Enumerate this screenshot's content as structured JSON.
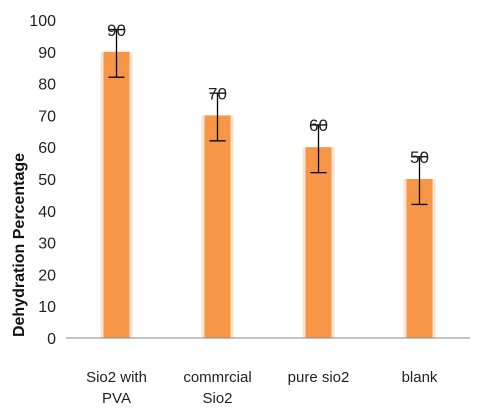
{
  "chart_data": {
    "type": "bar",
    "categories": [
      [
        "Sio2 with",
        "PVA"
      ],
      [
        "commrcial",
        "Sio2"
      ],
      [
        "pure sio2"
      ],
      [
        "blank"
      ]
    ],
    "values": [
      90,
      70,
      60,
      50
    ],
    "data_labels": [
      "90",
      "70",
      "60",
      "50"
    ],
    "error_low": [
      82,
      62,
      52,
      42
    ],
    "error_high": [
      97,
      77,
      67,
      57
    ],
    "ylabel": "Dehydration Percentage",
    "xlabel": "",
    "ylim": [
      0,
      100
    ],
    "yticks": [
      0,
      10,
      20,
      30,
      40,
      50,
      60,
      70,
      80,
      90,
      100
    ],
    "grid": false,
    "bar_color": "#F79646"
  }
}
